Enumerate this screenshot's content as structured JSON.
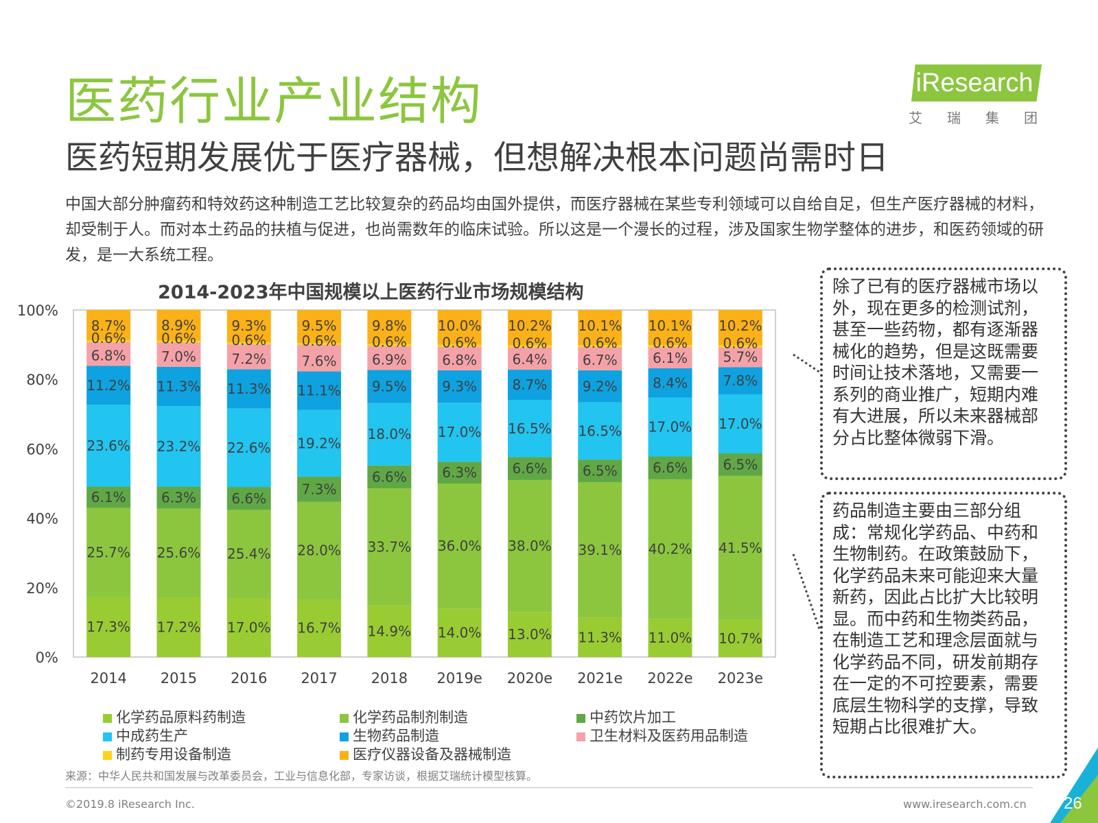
{
  "slide": {
    "title": "医药行业产业结构",
    "subtitle": "医药短期发展优于医疗器械，但想解决根本问题尚需时日",
    "intro": "中国大部分肿瘤药和特效药这种制造工艺比较复杂的药品均由国外提供，而医疗器械在某些专利领域可以自给自足，但生产医疗器械的材料，却受制于人。而对本土药品的扶植与促进，也尚需数年的临床试验。所以这是一个漫长的过程，涉及国家生物学整体的进步，和医药领域的研发，是一大系统工程。",
    "logo_text": "iResearch",
    "logo_sub": "艾瑞集团",
    "source": "来源：中华人民共和国发展与改革委员会，工业与信息化部，专家访谈，根据艾瑞统计模型核算。",
    "copyright": "©2019.8 iResearch Inc.",
    "website": "www.iresearch.com.cn",
    "page_number": "26"
  },
  "notes": {
    "note1": "除了已有的医疗器械市场以外，现在更多的检测试剂，甚至一些药物，都有逐渐器械化的趋势，但是这既需要时间让技术落地，又需要一系列的商业推广，短期内难有大进展，所以未来器械部分占比整体微弱下滑。",
    "note2": "药品制造主要由三部分组成：常规化学药品、中药和生物制药。在政策鼓励下，化学药品未来可能迎来大量新药，因此占比扩大比较明显。而中药和生物类药品，在制造工艺和理念层面就与化学药品不同，研发前期存在一定的不可控要素，需要底层生物科学的支撑，导致短期占比很难扩大。"
  },
  "colors": {
    "brand_green": "#8cc63f",
    "corner_teal": "#1ab1d6"
  },
  "chart_data": {
    "type": "bar",
    "stacked": true,
    "normalized": true,
    "title": "2014-2023年中国规模以上医药行业市场规模结构",
    "categories": [
      "2014",
      "2015",
      "2016",
      "2017",
      "2018",
      "2019e",
      "2020e",
      "2021e",
      "2022e",
      "2023e"
    ],
    "y_ticks": [
      "0%",
      "20%",
      "40%",
      "60%",
      "80%",
      "100%"
    ],
    "ylim": [
      0,
      100
    ],
    "grid": false,
    "legend_position": "bottom",
    "series": [
      {
        "name": "化学药品原料药制造",
        "color": "#99cc33",
        "values": [
          17.3,
          17.2,
          17.0,
          16.7,
          14.9,
          14.0,
          13.0,
          11.3,
          11.0,
          10.7
        ],
        "labels": [
          "17.3%",
          "17.2%",
          "17.0%",
          "16.7%",
          "14.9%",
          "14.0%",
          "13.0%",
          "11.3%",
          "11.0%",
          "10.7%"
        ]
      },
      {
        "name": "化学药品制剂制造",
        "color": "#8cc63f",
        "values": [
          25.7,
          25.6,
          25.4,
          28.0,
          33.7,
          36.0,
          38.0,
          39.1,
          40.2,
          41.5
        ],
        "labels": [
          "25.7%",
          "25.6%",
          "25.4%",
          "28.0%",
          "33.7%",
          "36.0%",
          "38.0%",
          "39.1%",
          "40.2%",
          "41.5%"
        ]
      },
      {
        "name": "中药饮片加工",
        "color": "#5fa845",
        "values": [
          6.1,
          6.3,
          6.6,
          7.3,
          6.6,
          6.3,
          6.6,
          6.5,
          6.6,
          6.5
        ],
        "labels": [
          "6.1%",
          "6.3%",
          "6.6%",
          "7.3%",
          "6.6%",
          "6.3%",
          "6.6%",
          "6.5%",
          "6.6%",
          "6.5%"
        ]
      },
      {
        "name": "中成药生产",
        "color": "#22c4f0",
        "values": [
          23.6,
          23.2,
          22.6,
          19.2,
          18.0,
          17.0,
          16.5,
          16.5,
          17.0,
          17.0
        ],
        "labels": [
          "23.6%",
          "23.2%",
          "22.6%",
          "19.2%",
          "18.0%",
          "17.0%",
          "16.5%",
          "16.5%",
          "17.0%",
          "17.0%"
        ]
      },
      {
        "name": "生物药品制造",
        "color": "#0ea2e0",
        "values": [
          11.2,
          11.3,
          11.3,
          11.1,
          9.5,
          9.3,
          8.7,
          9.2,
          8.4,
          7.8
        ],
        "labels": [
          "11.2%",
          "11.3%",
          "11.3%",
          "11.1%",
          "9.5%",
          "9.3%",
          "8.7%",
          "9.2%",
          "8.4%",
          "7.8%"
        ]
      },
      {
        "name": "卫生材料及医药用品制造",
        "color": "#f4a2a8",
        "values": [
          6.8,
          7.0,
          7.2,
          7.6,
          6.9,
          6.8,
          6.4,
          6.7,
          6.1,
          5.7
        ],
        "labels": [
          "6.8%",
          "7.0%",
          "7.2%",
          "7.6%",
          "6.9%",
          "6.8%",
          "6.4%",
          "6.7%",
          "6.1%",
          "5.7%"
        ]
      },
      {
        "name": "制药专用设备制造",
        "color": "#ffd21f",
        "values": [
          0.6,
          0.6,
          0.6,
          0.6,
          0.6,
          0.6,
          0.6,
          0.6,
          0.6,
          0.6
        ],
        "labels": [
          "0.6%",
          "0.6%",
          "0.6%",
          "0.6%",
          "0.6%",
          "0.6%",
          "0.6%",
          "0.6%",
          "0.6%",
          "0.6%"
        ]
      },
      {
        "name": "医疗仪器设备及器械制造",
        "color": "#fbb117",
        "values": [
          8.7,
          8.9,
          9.3,
          9.5,
          9.8,
          10.0,
          10.2,
          10.1,
          10.1,
          10.2
        ],
        "labels": [
          "8.7%",
          "8.9%",
          "9.3%",
          "9.5%",
          "9.8%",
          "10.0%",
          "10.2%",
          "10.1%",
          "10.1%",
          "10.2%"
        ]
      }
    ]
  }
}
